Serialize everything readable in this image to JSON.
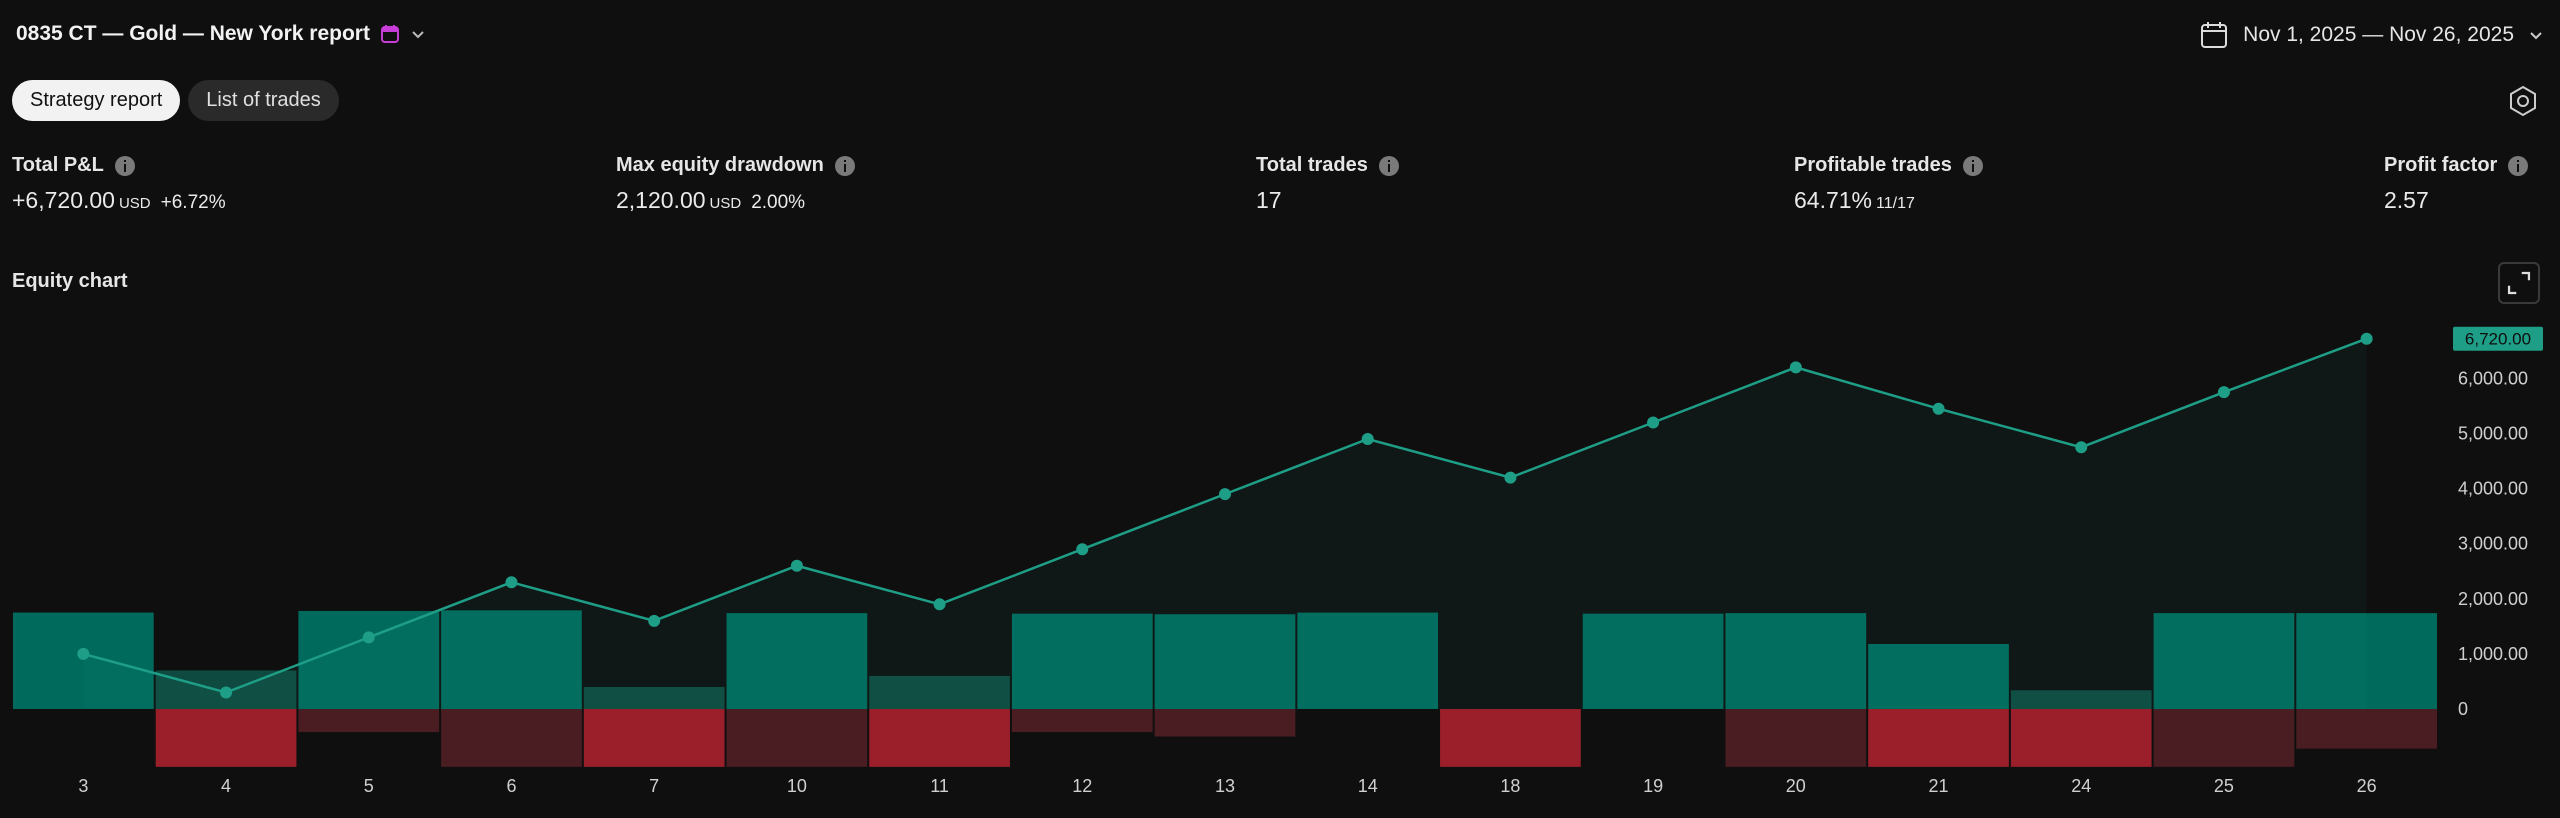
{
  "header": {
    "title": "0835 CT — Gold — New York report",
    "date_range": "Nov 1, 2025 — Nov 26, 2025"
  },
  "tabs": [
    {
      "label": "Strategy report",
      "active": true
    },
    {
      "label": "List of trades",
      "active": false
    }
  ],
  "stats": {
    "total_pnl": {
      "label": "Total P&L",
      "value": "+6,720.00",
      "unit": "USD",
      "percent": "+6.72%"
    },
    "max_drawdown": {
      "label": "Max equity drawdown",
      "value": "2,120.00",
      "unit": "USD",
      "percent": "2.00%"
    },
    "total_trades": {
      "label": "Total trades",
      "value": "17"
    },
    "profitable_trades": {
      "label": "Profitable trades",
      "value": "64.71%",
      "fraction": "11/17"
    },
    "profit_factor": {
      "label": "Profit factor",
      "value": "2.57"
    }
  },
  "equity_chart": {
    "title": "Equity chart"
  },
  "colors": {
    "accent": "#1e9e86",
    "gain_bar": "#006b5d",
    "loss_bar": "#9b1f2b",
    "background": "#0f0f0f"
  },
  "chart_data": {
    "type": "line",
    "categories": [
      "3",
      "4",
      "5",
      "6",
      "7",
      "10",
      "11",
      "12",
      "13",
      "14",
      "18",
      "19",
      "20",
      "21",
      "24",
      "25",
      "26"
    ],
    "series": [
      {
        "values": [
          1000,
          300,
          1300,
          2300,
          1600,
          2600,
          1900,
          2900,
          3900,
          4900,
          4200,
          5200,
          6200,
          5450,
          4750,
          5750,
          6720
        ]
      }
    ],
    "run_up": [
      1750,
      700,
      1780,
      1790,
      400,
      1740,
      600,
      1730,
      1720,
      1750,
      0,
      1730,
      1740,
      1180,
      340,
      1740,
      1740
    ],
    "drawdown": [
      0,
      -1050,
      -420,
      -1050,
      -1050,
      -1050,
      -1050,
      -420,
      -500,
      0,
      -1050,
      0,
      -1050,
      -1050,
      -1050,
      -1050,
      -720
    ],
    "yticks": [
      "6,000.00",
      "5,000.00",
      "4,000.00",
      "3,000.00",
      "2,000.00",
      "1,000.00",
      "0"
    ],
    "ytick_values": [
      6000,
      5000,
      4000,
      3000,
      2000,
      1000,
      0
    ],
    "last_value_label": "6,720.00",
    "ylim": [
      -1050,
      6900
    ],
    "grid": false
  }
}
